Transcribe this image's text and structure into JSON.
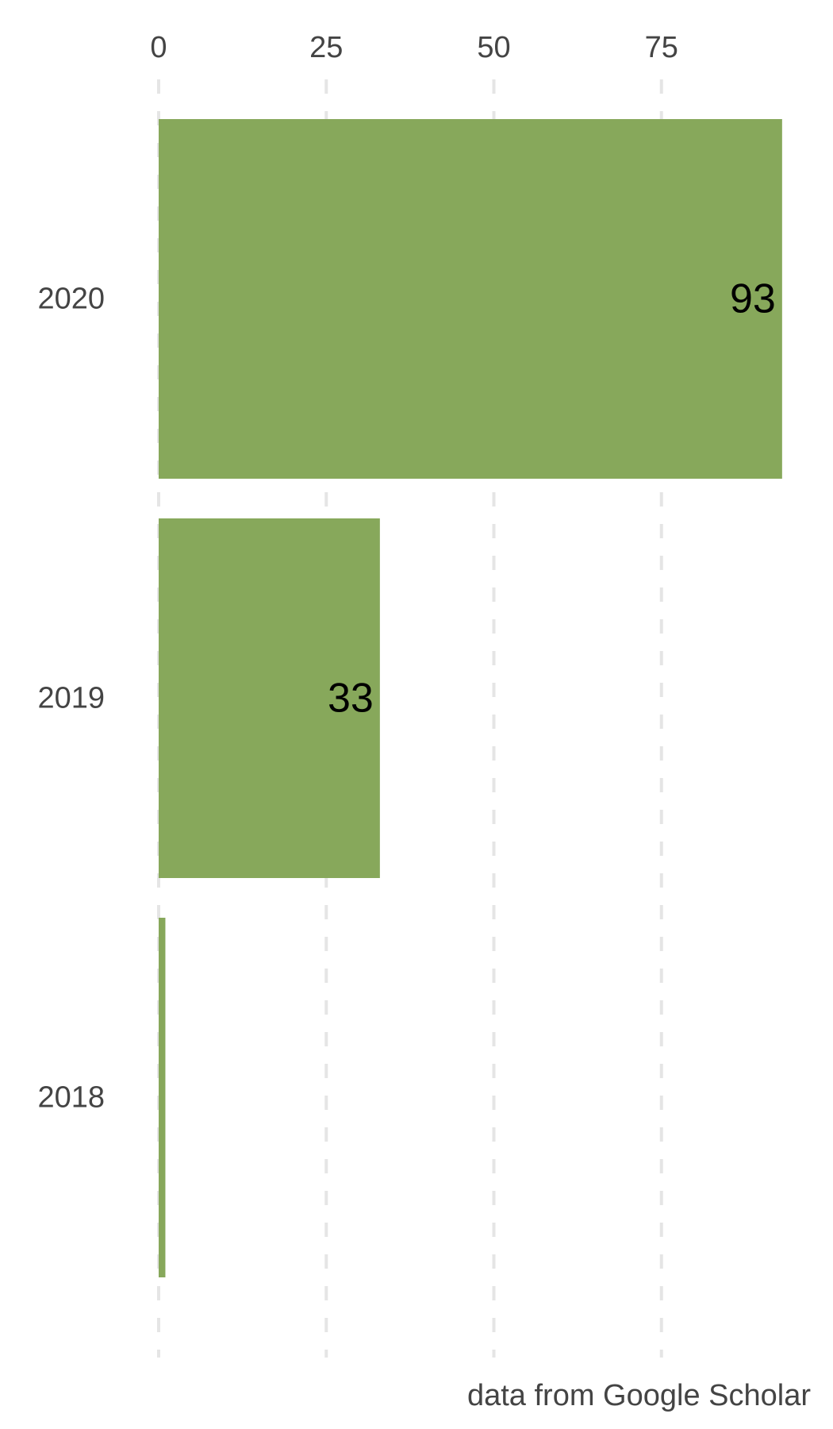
{
  "chart_data": {
    "type": "bar",
    "orientation": "horizontal",
    "categories": [
      "2020",
      "2019",
      "2018"
    ],
    "values": [
      93,
      33,
      1
    ],
    "data_labels": [
      "93",
      "33",
      ""
    ],
    "x_ticks": [
      0,
      25,
      50,
      75
    ],
    "x_tick_labels": [
      "0",
      "25",
      "50",
      "75"
    ],
    "xlim": [
      0,
      93
    ],
    "grid": "vertical dashed",
    "x_axis_position": "top",
    "caption": "data from Google Scholar",
    "colors": {
      "bar": "#87A85B",
      "grid": "#E5E5E5",
      "axis_text": "#444444",
      "data_label": "#000000"
    }
  }
}
